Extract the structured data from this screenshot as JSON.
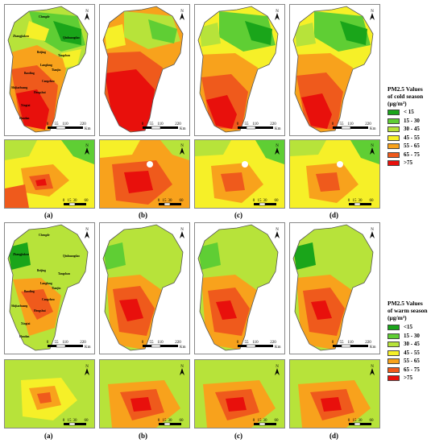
{
  "legend_classes": [
    {
      "cold": "< 15",
      "warm": "<15",
      "color": "#1aa51a"
    },
    {
      "cold": "15 - 30",
      "warm": "15 - 30",
      "color": "#5fce34"
    },
    {
      "cold": "30 - 45",
      "warm": "30 - 45",
      "color": "#b7e33a"
    },
    {
      "cold": "45 - 55",
      "warm": "45 - 55",
      "color": "#f6f028"
    },
    {
      "cold": "55 - 65",
      "warm": "55 - 65",
      "color": "#f8a21c"
    },
    {
      "cold": "65 - 75",
      "warm": "65 - 75",
      "color": "#ef5a1c"
    },
    {
      "cold": ">75",
      "warm": ">75",
      "color": "#e8100c"
    }
  ],
  "legends": {
    "cold_title": [
      "PM2.5 Values",
      "of cold season",
      "(μg/m³)"
    ],
    "warm_title": [
      "PM2.5 Values",
      "of warm season",
      "(μg/m³)"
    ]
  },
  "panel_labels": [
    "(a)",
    "(b)",
    "(c)",
    "(d)"
  ],
  "scale_bar": {
    "large": [
      "0",
      "55",
      "110",
      "220"
    ],
    "large_unit": "Km",
    "small": [
      "0",
      "15",
      "30",
      "60"
    ]
  },
  "north_arrow": "N",
  "cities_cold": [
    "Chengde",
    "Zhangjiakou",
    "Qinhuangdao",
    "Tangshan",
    "Beijing",
    "Tianjin",
    "Langfang",
    "Baoding",
    "Cangzhou",
    "Shijiazhuang",
    "Hengshui",
    "Xingtai",
    "Handan"
  ],
  "cities_warm": [
    "Chengde",
    "Zhangjiakou",
    "Qinhuangdao",
    "Tangshan",
    "Beijing",
    "Tianjin",
    "Langfang",
    "Baoding",
    "Cangzhou",
    "Shijiazhuang",
    "Hengshui",
    "Xingtai",
    "Handan"
  ]
}
